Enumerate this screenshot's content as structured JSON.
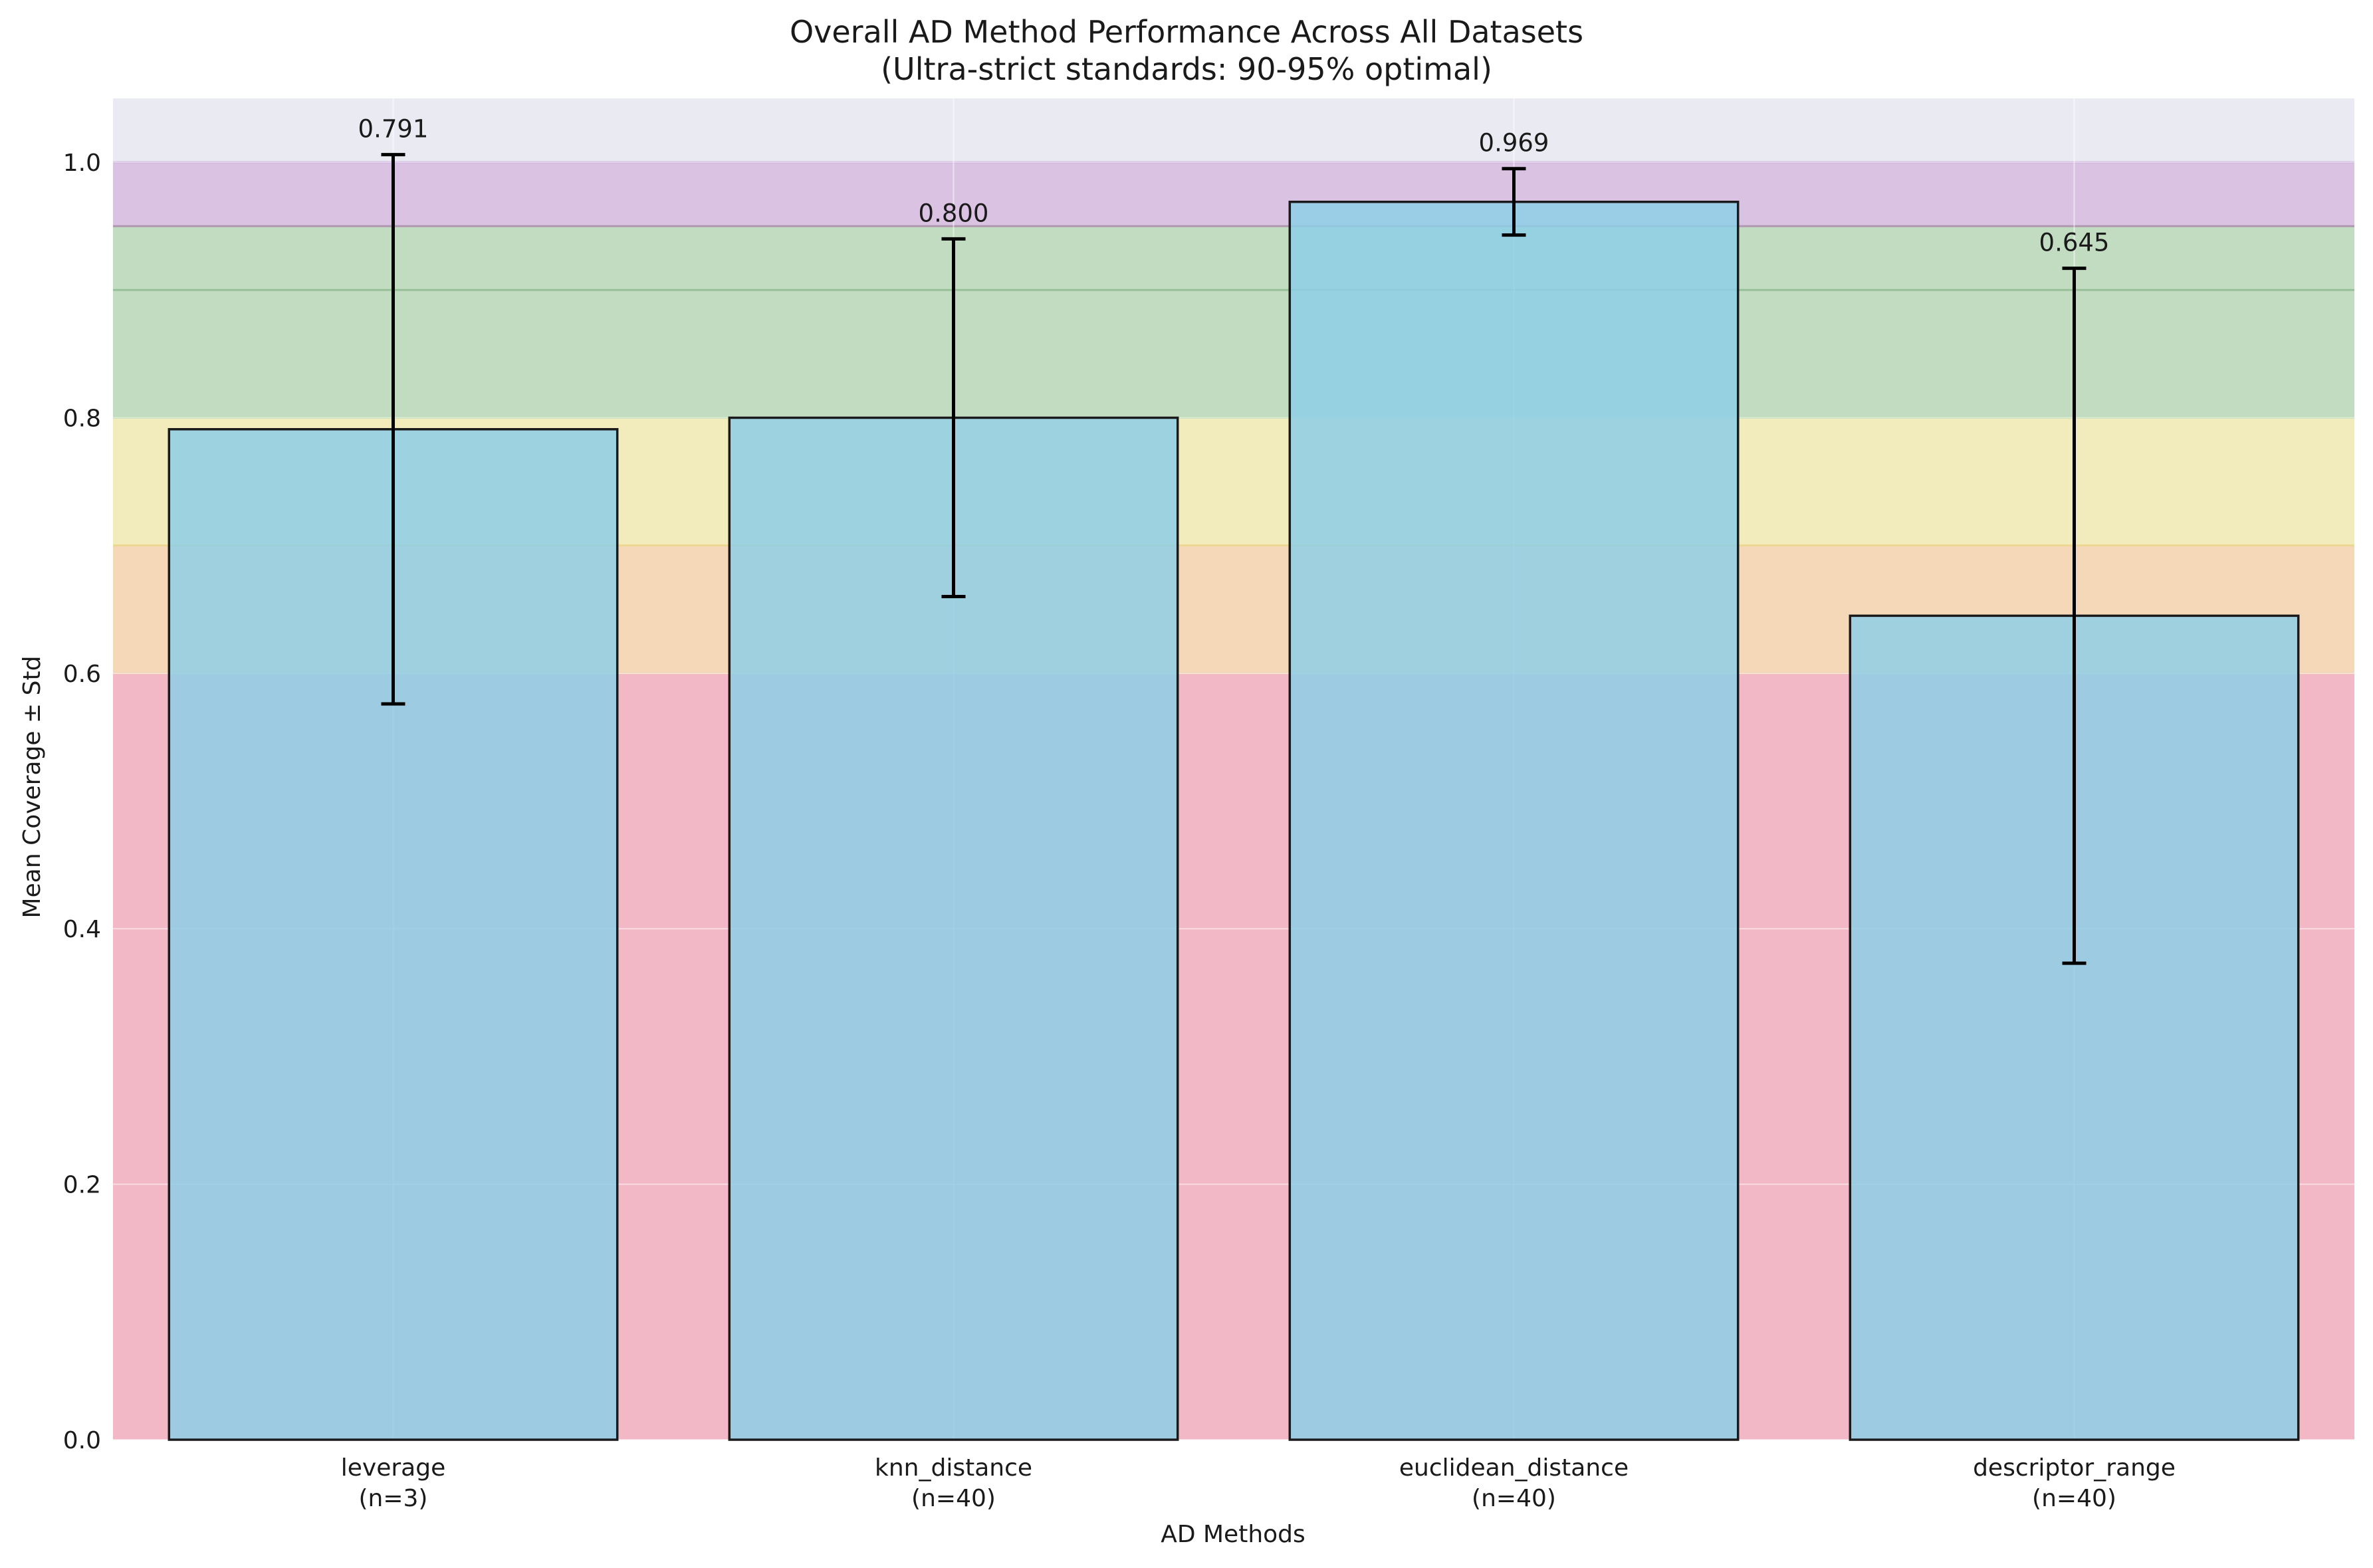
{
  "chart_data": {
    "type": "bar",
    "title_line1": "Overall AD Method Performance Across All Datasets",
    "title_line2": "(Ultra-strict standards: 90-95% optimal)",
    "xlabel": "AD Methods",
    "ylabel": "Mean Coverage ± Std",
    "ylim": [
      0,
      1.05
    ],
    "yticks": [
      0.0,
      0.2,
      0.4,
      0.6,
      0.8,
      1.0
    ],
    "ytick_labels": [
      "0.0",
      "0.2",
      "0.4",
      "0.6",
      "0.8",
      "1.0"
    ],
    "grid": true,
    "categories": [
      {
        "name": "leverage",
        "n_label": "(n=3)"
      },
      {
        "name": "knn_distance",
        "n_label": "(n=40)"
      },
      {
        "name": "euclidean_distance",
        "n_label": "(n=40)"
      },
      {
        "name": "descriptor_range",
        "n_label": "(n=40)"
      }
    ],
    "values": [
      0.791,
      0.8,
      0.969,
      0.645
    ],
    "value_labels": [
      "0.791",
      "0.800",
      "0.969",
      "0.645"
    ],
    "std": [
      0.215,
      0.14,
      0.026,
      0.272
    ],
    "bands": [
      {
        "from": 0.0,
        "to": 0.6,
        "color": "#f2b8c6"
      },
      {
        "from": 0.6,
        "to": 0.7,
        "color": "#f4d8b8"
      },
      {
        "from": 0.7,
        "to": 0.8,
        "color": "#f2ecbc"
      },
      {
        "from": 0.8,
        "to": 0.9,
        "color": "#c2dcc2"
      },
      {
        "from": 0.9,
        "to": 0.95,
        "color": "#c2dcc2"
      },
      {
        "from": 0.95,
        "to": 1.0,
        "color": "#d9c2e2"
      }
    ],
    "band_lines": [
      {
        "y": 0.6,
        "color": "#f0c8a8"
      },
      {
        "y": 0.7,
        "color": "#ecd890"
      },
      {
        "y": 0.8,
        "color": "#bcd8a8"
      },
      {
        "y": 0.9,
        "color": "#98c098"
      },
      {
        "y": 0.95,
        "color": "#b098b0"
      },
      {
        "y": 1.0,
        "color": "#c8a8d8"
      }
    ],
    "colors": {
      "bar_fill": "#8ecfe6",
      "bar_edge": "#1a1a1a",
      "axes_bg": "#eaeaf2",
      "grid": "#ffffff",
      "error_bar": "#000000"
    }
  }
}
